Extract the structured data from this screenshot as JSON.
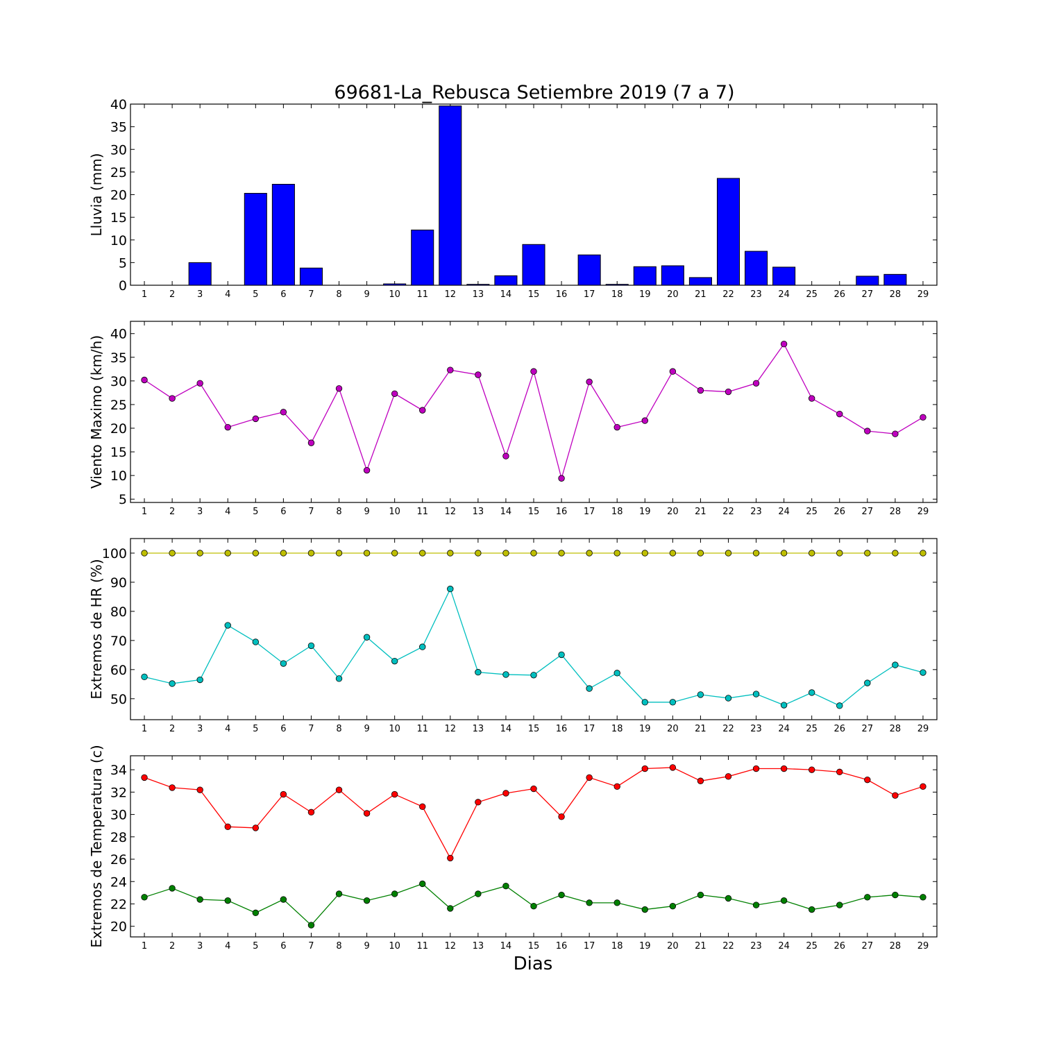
{
  "figure": {
    "title": "69681-La_Rebusca Setiembre 2019  (7 a 7)",
    "xlabel": "Dias"
  },
  "chart_data": [
    {
      "type": "bar",
      "ylabel": "Lluvia (mm)",
      "ylim": [
        0,
        40
      ],
      "yticks": [
        0,
        5,
        10,
        15,
        20,
        25,
        30,
        35,
        40
      ],
      "xlim": [
        0.5,
        29.5
      ],
      "categories": [
        1,
        2,
        3,
        4,
        5,
        6,
        7,
        8,
        9,
        10,
        11,
        12,
        13,
        14,
        15,
        16,
        17,
        18,
        19,
        20,
        21,
        22,
        23,
        24,
        25,
        26,
        27,
        28,
        29
      ],
      "series": [
        {
          "color": "#0000ff",
          "values": [
            0,
            0,
            5,
            0,
            20.3,
            22.3,
            3.8,
            0,
            0,
            0.3,
            12.2,
            39.6,
            0.2,
            2.1,
            9,
            0,
            6.7,
            0.2,
            4.1,
            4.3,
            1.7,
            23.6,
            7.5,
            4,
            0,
            0,
            2,
            2.4,
            0
          ]
        }
      ]
    },
    {
      "type": "line",
      "ylabel": "Viento Maximo (km/h)",
      "ylim": [
        4.3,
        42.6
      ],
      "yticks": [
        5,
        10,
        15,
        20,
        25,
        30,
        35,
        40
      ],
      "xlim": [
        0.5,
        29.5
      ],
      "x": [
        1,
        2,
        3,
        4,
        5,
        6,
        7,
        8,
        9,
        10,
        11,
        12,
        13,
        14,
        15,
        16,
        17,
        18,
        19,
        20,
        21,
        22,
        23,
        24,
        25,
        26,
        27,
        28,
        29
      ],
      "series": [
        {
          "color": "#bf00bf",
          "values": [
            30.2,
            26.3,
            29.5,
            20.2,
            22,
            23.4,
            16.9,
            28.4,
            11.1,
            27.3,
            23.8,
            32.3,
            31.3,
            14.1,
            32,
            9.4,
            29.8,
            20.2,
            21.6,
            32,
            28,
            27.7,
            29.5,
            37.8,
            26.3,
            23,
            19.4,
            18.8,
            22.3
          ]
        }
      ]
    },
    {
      "type": "line",
      "ylabel": "Extremos de HR (%)",
      "ylim": [
        42.8,
        105
      ],
      "yticks": [
        50,
        60,
        70,
        80,
        90,
        100
      ],
      "xlim": [
        0.5,
        29.5
      ],
      "x": [
        1,
        2,
        3,
        4,
        5,
        6,
        7,
        8,
        9,
        10,
        11,
        12,
        13,
        14,
        15,
        16,
        17,
        18,
        19,
        20,
        21,
        22,
        23,
        24,
        25,
        26,
        27,
        28,
        29
      ],
      "series": [
        {
          "color": "#bfbf00",
          "values": [
            100,
            100,
            100,
            100,
            100,
            100,
            100,
            100,
            100,
            100,
            100,
            100,
            100,
            100,
            100,
            100,
            100,
            100,
            100,
            100,
            100,
            100,
            100,
            100,
            100,
            100,
            100,
            100,
            100
          ]
        },
        {
          "color": "#00bfbf",
          "values": [
            57.5,
            55.2,
            56.5,
            75.2,
            69.5,
            62.1,
            68.2,
            56.9,
            71.1,
            62.9,
            67.8,
            87.7,
            59.1,
            58.3,
            58.1,
            65.1,
            53.5,
            58.8,
            48.8,
            48.8,
            51.4,
            50.2,
            51.6,
            47.8,
            52.1,
            47.6,
            55.4,
            61.6,
            59
          ]
        }
      ]
    },
    {
      "type": "line",
      "ylabel": "Extremos de Temperatura (c)",
      "ylim": [
        19.05,
        35.25
      ],
      "yticks": [
        20,
        22,
        24,
        26,
        28,
        30,
        32,
        34
      ],
      "xlim": [
        0.5,
        29.5
      ],
      "x": [
        1,
        2,
        3,
        4,
        5,
        6,
        7,
        8,
        9,
        10,
        11,
        12,
        13,
        14,
        15,
        16,
        17,
        18,
        19,
        20,
        21,
        22,
        23,
        24,
        25,
        26,
        27,
        28,
        29
      ],
      "series": [
        {
          "color": "#ff0000",
          "values": [
            33.3,
            32.4,
            32.2,
            28.9,
            28.8,
            31.8,
            30.2,
            32.2,
            30.1,
            31.8,
            30.7,
            26.1,
            31.1,
            31.9,
            32.3,
            29.8,
            33.3,
            32.5,
            34.1,
            34.2,
            33,
            33.4,
            34.1,
            34.1,
            34,
            33.8,
            33.1,
            31.7,
            32.5
          ]
        },
        {
          "color": "#008000",
          "values": [
            22.6,
            23.4,
            22.4,
            22.3,
            21.2,
            22.4,
            20.1,
            22.9,
            22.3,
            22.9,
            23.8,
            21.6,
            22.9,
            23.6,
            21.8,
            22.8,
            22.1,
            22.1,
            21.5,
            21.8,
            22.8,
            22.5,
            21.9,
            22.3,
            21.5,
            21.9,
            22.6,
            22.8,
            22.6
          ]
        }
      ]
    }
  ]
}
